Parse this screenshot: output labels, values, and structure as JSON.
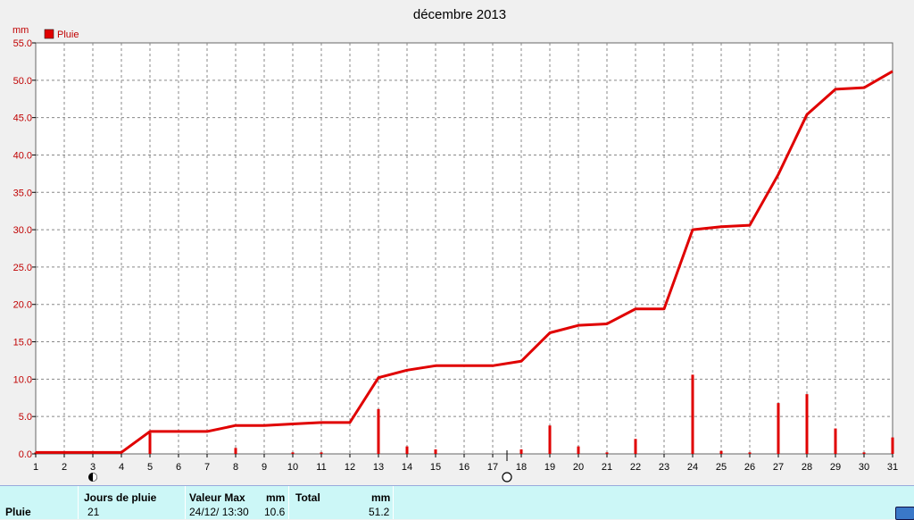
{
  "chart_data": {
    "type": "line",
    "title": "décembre 2013",
    "ylabel": "mm",
    "legend": "Pluie",
    "legend_placement": "top-left",
    "grid": true,
    "ylim": [
      0,
      55
    ],
    "xlim": [
      1,
      31
    ],
    "x_ticks": [
      "1",
      "2",
      "3",
      "4",
      "5",
      "6",
      "7",
      "8",
      "9",
      "10",
      "11",
      "12",
      "13",
      "14",
      "15",
      "16",
      "17",
      "18",
      "19",
      "20",
      "21",
      "22",
      "23",
      "24",
      "25",
      "26",
      "27",
      "28",
      "29",
      "30",
      "31"
    ],
    "y_ticks": [
      "0.0",
      "5.0",
      "10.0",
      "15.0",
      "20.0",
      "25.0",
      "30.0",
      "35.0",
      "40.0",
      "45.0",
      "50.0",
      "55.0"
    ],
    "series": [
      {
        "name": "Pluie",
        "kind": "cumulative",
        "x": [
          1,
          2,
          3,
          4,
          5,
          6,
          7,
          8,
          9,
          10,
          11,
          12,
          13,
          14,
          15,
          16,
          17,
          18,
          19,
          20,
          21,
          22,
          23,
          24,
          25,
          26,
          27,
          28,
          29,
          30,
          31
        ],
        "values": [
          0.2,
          0.2,
          0.2,
          0.2,
          3.0,
          3.0,
          3.0,
          3.8,
          3.8,
          4.0,
          4.2,
          4.2,
          10.2,
          11.2,
          11.8,
          11.8,
          11.8,
          12.4,
          16.2,
          17.2,
          17.4,
          19.4,
          19.4,
          30.0,
          30.4,
          30.6,
          37.4,
          45.4,
          48.8,
          49.0,
          51.2
        ]
      },
      {
        "name": "Pluie",
        "kind": "daily",
        "x": [
          1,
          2,
          3,
          4,
          5,
          6,
          7,
          8,
          9,
          10,
          11,
          12,
          13,
          14,
          15,
          16,
          17,
          18,
          19,
          20,
          21,
          22,
          23,
          24,
          25,
          26,
          27,
          28,
          29,
          30,
          31
        ],
        "values": [
          0.2,
          0,
          0,
          0,
          2.8,
          0,
          0,
          0.8,
          0,
          0.2,
          0.2,
          0,
          6.0,
          1.0,
          0.6,
          0,
          0,
          0.6,
          3.8,
          1.0,
          0.2,
          2.0,
          0,
          10.6,
          0.4,
          0.2,
          6.8,
          8.0,
          3.4,
          0.2,
          2.2
        ]
      }
    ],
    "moon_phases": [
      {
        "day": 3,
        "phase": "new-moon"
      },
      {
        "day": 17.5,
        "phase": "full-moon"
      }
    ],
    "colors": {
      "series": "#e00000",
      "plot_bg": "#ffffff",
      "grid": "#888888",
      "page_bg": "#f0f0f0"
    }
  },
  "summary": {
    "row_label": "Pluie",
    "jours_header": "Jours de pluie",
    "jours_value": "21",
    "max_header": "Valeur Max",
    "max_unit": "mm",
    "max_date": "24/12/  13:30",
    "max_value": "10.6",
    "total_header": "Total",
    "total_unit": "mm",
    "total_value": "51.2"
  }
}
